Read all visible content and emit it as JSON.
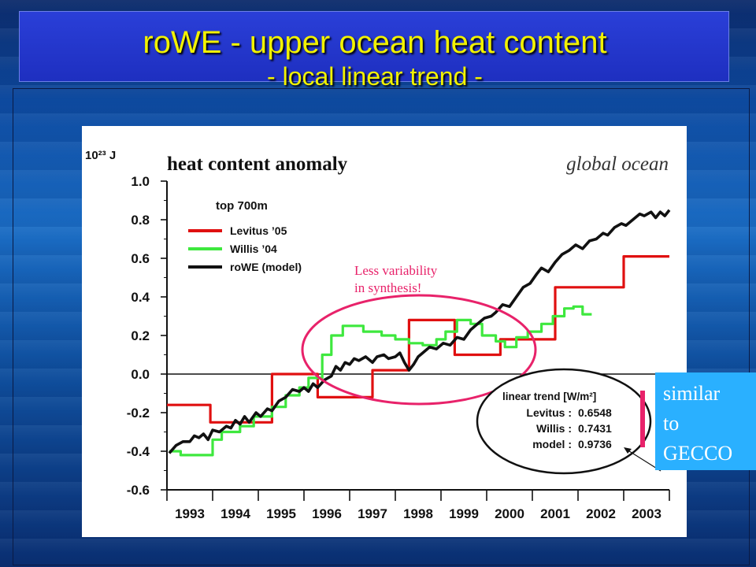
{
  "slide": {
    "title": "roWE - upper ocean heat content",
    "subtitle": "- local linear trend -",
    "callout_lines": [
      "similar",
      "to",
      "GECCO"
    ],
    "colors": {
      "title_text": "#f2f200",
      "title_box": "#1e2fc0",
      "callout_box": "#2ab0ff",
      "annotation": "#e8226a"
    }
  },
  "chart_data": {
    "type": "line",
    "title": "heat content anomaly",
    "subtitle": "global ocean",
    "unit_label": "10²³ J",
    "ylim": [
      -0.6,
      1.0
    ],
    "xlim": [
      1993,
      2004
    ],
    "y_ticks": [
      "1.0",
      "0.8",
      "0.6",
      "0.4",
      "0.2",
      "0.0",
      "-0.2",
      "-0.4",
      "-0.6"
    ],
    "y_tick_values": [
      1.0,
      0.8,
      0.6,
      0.4,
      0.2,
      0.0,
      -0.2,
      -0.4,
      -0.6
    ],
    "x_ticks": [
      "1993",
      "1994",
      "1995",
      "1996",
      "1997",
      "1998",
      "1999",
      "2000",
      "2001",
      "2002",
      "2003"
    ],
    "x_tick_values": [
      1993.5,
      1994.5,
      1995.5,
      1996.5,
      1997.5,
      1998.5,
      1999.5,
      2000.5,
      2001.5,
      2002.5,
      2003.5
    ],
    "legend_heading": "top 700m",
    "legend_position": "top-left",
    "series": [
      {
        "name": "Levitus ’05",
        "color": "#e01010",
        "step": true,
        "points": [
          [
            1993.0,
            -0.16
          ],
          [
            1993.95,
            -0.16
          ],
          [
            1993.95,
            -0.25
          ],
          [
            1994.95,
            -0.25
          ],
          [
            1994.95,
            -0.25
          ],
          [
            1995.3,
            -0.25
          ],
          [
            1995.3,
            0.0
          ],
          [
            1996.3,
            0.0
          ],
          [
            1996.3,
            -0.12
          ],
          [
            1997.5,
            -0.12
          ],
          [
            1997.5,
            0.02
          ],
          [
            1998.3,
            0.02
          ],
          [
            1998.3,
            0.28
          ],
          [
            1999.3,
            0.28
          ],
          [
            1999.3,
            0.1
          ],
          [
            2000.3,
            0.1
          ],
          [
            2000.3,
            0.18
          ],
          [
            2001.5,
            0.18
          ],
          [
            2001.5,
            0.45
          ],
          [
            2002.3,
            0.45
          ],
          [
            2002.3,
            0.45
          ],
          [
            2003.0,
            0.45
          ],
          [
            2003.0,
            0.61
          ],
          [
            2004.0,
            0.61
          ]
        ]
      },
      {
        "name": "Willis ’04",
        "color": "#3ee83e",
        "step": true,
        "points": [
          [
            1993.05,
            -0.4
          ],
          [
            1993.1,
            -0.4
          ],
          [
            1993.3,
            -0.4
          ],
          [
            1993.3,
            -0.42
          ],
          [
            1994.0,
            -0.42
          ],
          [
            1994.0,
            -0.34
          ],
          [
            1994.2,
            -0.34
          ],
          [
            1994.2,
            -0.3
          ],
          [
            1994.6,
            -0.3
          ],
          [
            1994.6,
            -0.27
          ],
          [
            1994.9,
            -0.27
          ],
          [
            1994.9,
            -0.22
          ],
          [
            1995.3,
            -0.22
          ],
          [
            1995.3,
            -0.17
          ],
          [
            1995.6,
            -0.17
          ],
          [
            1995.6,
            -0.11
          ],
          [
            1995.9,
            -0.11
          ],
          [
            1995.9,
            -0.07
          ],
          [
            1996.1,
            -0.07
          ],
          [
            1996.1,
            -0.02
          ],
          [
            1996.4,
            -0.02
          ],
          [
            1996.4,
            0.1
          ],
          [
            1996.6,
            0.1
          ],
          [
            1996.6,
            0.2
          ],
          [
            1996.85,
            0.2
          ],
          [
            1996.85,
            0.25
          ],
          [
            1997.3,
            0.25
          ],
          [
            1997.3,
            0.22
          ],
          [
            1997.7,
            0.22
          ],
          [
            1997.7,
            0.2
          ],
          [
            1998.0,
            0.2
          ],
          [
            1998.0,
            0.18
          ],
          [
            1998.3,
            0.18
          ],
          [
            1998.3,
            0.16
          ],
          [
            1998.6,
            0.16
          ],
          [
            1998.6,
            0.15
          ],
          [
            1998.9,
            0.15
          ],
          [
            1998.9,
            0.18
          ],
          [
            1999.1,
            0.18
          ],
          [
            1999.1,
            0.22
          ],
          [
            1999.35,
            0.22
          ],
          [
            1999.35,
            0.28
          ],
          [
            1999.65,
            0.28
          ],
          [
            1999.65,
            0.26
          ],
          [
            1999.9,
            0.26
          ],
          [
            1999.9,
            0.2
          ],
          [
            2000.2,
            0.2
          ],
          [
            2000.2,
            0.17
          ],
          [
            2000.4,
            0.17
          ],
          [
            2000.4,
            0.14
          ],
          [
            2000.65,
            0.14
          ],
          [
            2000.65,
            0.19
          ],
          [
            2000.9,
            0.19
          ],
          [
            2000.9,
            0.22
          ],
          [
            2001.2,
            0.22
          ],
          [
            2001.2,
            0.26
          ],
          [
            2001.45,
            0.26
          ],
          [
            2001.45,
            0.3
          ],
          [
            2001.7,
            0.3
          ],
          [
            2001.7,
            0.34
          ],
          [
            2001.9,
            0.34
          ],
          [
            2001.9,
            0.35
          ],
          [
            2002.1,
            0.35
          ],
          [
            2002.1,
            0.31
          ],
          [
            2002.3,
            0.31
          ]
        ]
      },
      {
        "name": "roWE (model)",
        "color": "#111111",
        "step": false,
        "points": [
          [
            1993.05,
            -0.41
          ],
          [
            1993.2,
            -0.37
          ],
          [
            1993.35,
            -0.35
          ],
          [
            1993.5,
            -0.35
          ],
          [
            1993.6,
            -0.32
          ],
          [
            1993.7,
            -0.33
          ],
          [
            1993.8,
            -0.31
          ],
          [
            1993.9,
            -0.34
          ],
          [
            1994.0,
            -0.29
          ],
          [
            1994.15,
            -0.3
          ],
          [
            1994.3,
            -0.27
          ],
          [
            1994.4,
            -0.28
          ],
          [
            1994.5,
            -0.24
          ],
          [
            1994.6,
            -0.26
          ],
          [
            1994.7,
            -0.22
          ],
          [
            1994.8,
            -0.25
          ],
          [
            1994.95,
            -0.2
          ],
          [
            1995.05,
            -0.22
          ],
          [
            1995.2,
            -0.18
          ],
          [
            1995.3,
            -0.19
          ],
          [
            1995.45,
            -0.14
          ],
          [
            1995.6,
            -0.12
          ],
          [
            1995.75,
            -0.08
          ],
          [
            1995.9,
            -0.09
          ],
          [
            1996.0,
            -0.07
          ],
          [
            1996.1,
            -0.09
          ],
          [
            1996.2,
            -0.05
          ],
          [
            1996.3,
            -0.07
          ],
          [
            1996.45,
            -0.03
          ],
          [
            1996.6,
            -0.01
          ],
          [
            1996.7,
            0.04
          ],
          [
            1996.8,
            0.02
          ],
          [
            1996.9,
            0.06
          ],
          [
            1997.0,
            0.05
          ],
          [
            1997.1,
            0.08
          ],
          [
            1997.2,
            0.07
          ],
          [
            1997.35,
            0.09
          ],
          [
            1997.5,
            0.06
          ],
          [
            1997.6,
            0.09
          ],
          [
            1997.75,
            0.1
          ],
          [
            1997.85,
            0.08
          ],
          [
            1998.0,
            0.09
          ],
          [
            1998.1,
            0.11
          ],
          [
            1998.2,
            0.06
          ],
          [
            1998.3,
            0.02
          ],
          [
            1998.4,
            0.05
          ],
          [
            1998.5,
            0.09
          ],
          [
            1998.6,
            0.11
          ],
          [
            1998.75,
            0.14
          ],
          [
            1998.9,
            0.13
          ],
          [
            1999.05,
            0.16
          ],
          [
            1999.2,
            0.15
          ],
          [
            1999.35,
            0.19
          ],
          [
            1999.5,
            0.18
          ],
          [
            1999.65,
            0.23
          ],
          [
            1999.8,
            0.26
          ],
          [
            1999.95,
            0.29
          ],
          [
            2000.1,
            0.3
          ],
          [
            2000.2,
            0.32
          ],
          [
            2000.35,
            0.36
          ],
          [
            2000.5,
            0.35
          ],
          [
            2000.65,
            0.4
          ],
          [
            2000.8,
            0.45
          ],
          [
            2000.95,
            0.47
          ],
          [
            2001.1,
            0.52
          ],
          [
            2001.2,
            0.55
          ],
          [
            2001.35,
            0.53
          ],
          [
            2001.5,
            0.58
          ],
          [
            2001.65,
            0.62
          ],
          [
            2001.8,
            0.64
          ],
          [
            2001.95,
            0.67
          ],
          [
            2002.1,
            0.65
          ],
          [
            2002.25,
            0.69
          ],
          [
            2002.4,
            0.7
          ],
          [
            2002.55,
            0.73
          ],
          [
            2002.65,
            0.72
          ],
          [
            2002.8,
            0.76
          ],
          [
            2002.95,
            0.78
          ],
          [
            2003.05,
            0.77
          ],
          [
            2003.2,
            0.8
          ],
          [
            2003.35,
            0.83
          ],
          [
            2003.45,
            0.82
          ],
          [
            2003.6,
            0.84
          ],
          [
            2003.7,
            0.81
          ],
          [
            2003.8,
            0.84
          ],
          [
            2003.9,
            0.82
          ],
          [
            2004.0,
            0.85
          ]
        ]
      }
    ],
    "annotations": {
      "variability_text": [
        "Less variability",
        "in synthesis!"
      ],
      "trend_box_title": "linear trend [W/m²]",
      "trend_rows": [
        {
          "label": "Levitus :",
          "value": "0.6548"
        },
        {
          "label": "Willis :",
          "value": "0.7431"
        },
        {
          "label": "model :",
          "value": "0.9736"
        }
      ]
    }
  }
}
